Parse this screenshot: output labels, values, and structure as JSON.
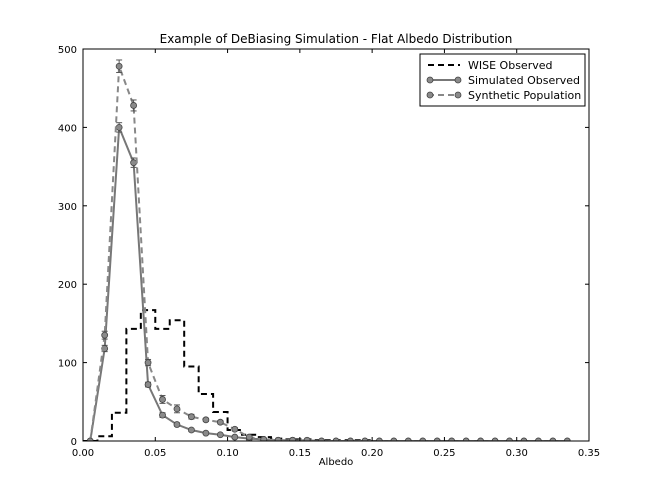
{
  "chart_data": {
    "type": "line",
    "title": "Example of DeBiasing Simulation - Flat Albedo Distribution",
    "xlabel": "Albedo",
    "ylabel": "",
    "xlim": [
      0.0,
      0.35
    ],
    "ylim": [
      0,
      500
    ],
    "xticks": [
      0.0,
      0.05,
      0.1,
      0.15,
      0.2,
      0.25,
      0.3,
      0.35
    ],
    "xtick_labels": [
      "0.00",
      "0.05",
      "0.10",
      "0.15",
      "0.20",
      "0.25",
      "0.30",
      "0.35"
    ],
    "yticks": [
      0,
      100,
      200,
      300,
      400,
      500
    ],
    "ytick_labels": [
      "0",
      "100",
      "200",
      "300",
      "400",
      "500"
    ],
    "grid": false,
    "legend_position": "top-right",
    "series": [
      {
        "name": "WISE Observed",
        "style": "step-dashed",
        "color": "#000000",
        "edges": [
          0.0,
          0.01,
          0.02,
          0.03,
          0.04,
          0.05,
          0.06,
          0.07,
          0.08,
          0.09,
          0.1,
          0.11,
          0.12,
          0.13,
          0.14,
          0.15,
          0.16,
          0.17,
          0.18,
          0.19,
          0.2,
          0.21,
          0.22,
          0.23,
          0.24
        ],
        "values": [
          0,
          6,
          36,
          143,
          167,
          143,
          154,
          95,
          60,
          37,
          14,
          8,
          5,
          3,
          2,
          2,
          1,
          1,
          1,
          1,
          0,
          0,
          0,
          0
        ]
      },
      {
        "name": "Simulated Observed",
        "style": "solid-markers",
        "color": "#777777",
        "x": [
          0.005,
          0.015,
          0.025,
          0.035,
          0.045,
          0.055,
          0.065,
          0.075,
          0.085,
          0.095,
          0.105,
          0.115,
          0.125,
          0.135,
          0.145,
          0.155,
          0.165,
          0.175,
          0.185,
          0.195,
          0.205,
          0.215,
          0.225,
          0.235,
          0.245,
          0.255,
          0.265,
          0.275,
          0.285,
          0.295,
          0.305,
          0.315,
          0.325,
          0.335
        ],
        "values": [
          0,
          118,
          400,
          355,
          72,
          33,
          21,
          14,
          10,
          8,
          5,
          3,
          2,
          1,
          1,
          0,
          0,
          0,
          0,
          0,
          0,
          0,
          0,
          0,
          0,
          0,
          0,
          0,
          0,
          0,
          0,
          0,
          0,
          0
        ],
        "errors": [
          0,
          4,
          6,
          6,
          3,
          3,
          2,
          2,
          1,
          1,
          1,
          1,
          0,
          0,
          0,
          0,
          0,
          0,
          0,
          0,
          0,
          0,
          0,
          0,
          0,
          0,
          0,
          0,
          0,
          0,
          0,
          0,
          0,
          0
        ]
      },
      {
        "name": "Synthetic Population",
        "style": "dashed-markers",
        "color": "#888888",
        "x": [
          0.005,
          0.015,
          0.025,
          0.035,
          0.045,
          0.055,
          0.065,
          0.075,
          0.085,
          0.095,
          0.105,
          0.115,
          0.125,
          0.135,
          0.145,
          0.155,
          0.165,
          0.175,
          0.185,
          0.195,
          0.205,
          0.215,
          0.225,
          0.235,
          0.245,
          0.255,
          0.265,
          0.275,
          0.285,
          0.295,
          0.305,
          0.315,
          0.325,
          0.335
        ],
        "values": [
          0,
          135,
          478,
          428,
          100,
          53,
          41,
          31,
          27,
          24,
          15,
          5,
          2,
          1,
          1,
          1,
          0,
          0,
          0,
          0,
          0,
          0,
          0,
          0,
          0,
          0,
          0,
          0,
          0,
          0,
          0,
          0,
          0,
          0
        ],
        "errors": [
          0,
          5,
          8,
          7,
          4,
          5,
          5,
          3,
          2,
          2,
          2,
          1,
          1,
          0,
          0,
          0,
          0,
          0,
          0,
          0,
          0,
          0,
          0,
          0,
          0,
          0,
          0,
          0,
          0,
          0,
          0,
          0,
          0,
          0
        ]
      }
    ]
  }
}
